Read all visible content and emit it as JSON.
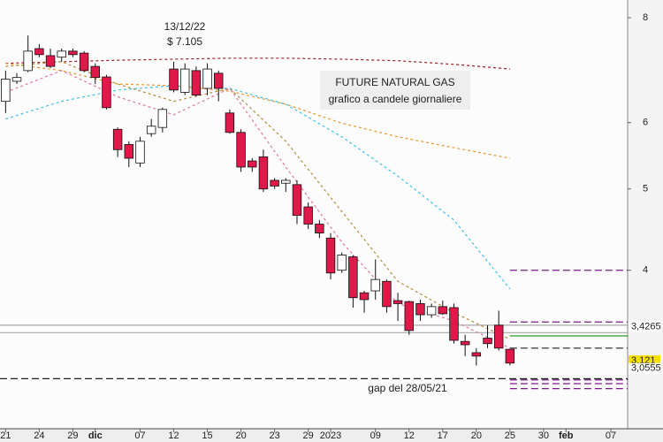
{
  "chart_data": {
    "type": "candlestick",
    "title": "FUTURE NATURAL GAS",
    "subtitle": "grafico a candele giornaliere",
    "annotations": [
      {
        "text": "13/12/22",
        "value_text": "$ 7.105"
      },
      {
        "text": "gap del 28/05/21"
      }
    ],
    "log_scale": true,
    "ylim": [
      2.57,
      8.4
    ],
    "yticks": [
      4,
      5,
      6,
      8
    ],
    "up_color": "#ffffff",
    "down_color": "#e0194b",
    "categories": [
      "21",
      null,
      null,
      "24",
      null,
      null,
      "29",
      null,
      "dic",
      null,
      null,
      null,
      "07",
      null,
      null,
      "12",
      null,
      null,
      "15",
      null,
      null,
      "20",
      null,
      null,
      "23",
      null,
      null,
      "29",
      null,
      "2023",
      null,
      null,
      null,
      "09",
      null,
      null,
      "12",
      null,
      null,
      "17",
      null,
      null,
      "20",
      null,
      null,
      "25",
      null,
      null,
      "30",
      null,
      "feb",
      null,
      null,
      null,
      "07",
      null
    ],
    "open": [
      6.36,
      6.72,
      6.92,
      7.35,
      7.21,
      7.18,
      7.3,
      7.26,
      7.0,
      6.8,
      5.89,
      5.65,
      5.37,
      5.82,
      5.92,
      6.95,
      6.52,
      6.92,
      6.59,
      6.87,
      6.16,
      5.84,
      5.4,
      5.46,
      5.12,
      5.08,
      5.06,
      4.76,
      4.54,
      4.37,
      4.0,
      4.15,
      3.76,
      3.78,
      3.88,
      3.68,
      3.67,
      3.65,
      3.54,
      3.62,
      3.61,
      3.29,
      3.19,
      3.32,
      3.44,
      3.22,
      null,
      null,
      null,
      null,
      null,
      null,
      null,
      null,
      null,
      null
    ],
    "high": [
      6.92,
      6.87,
      7.62,
      7.44,
      7.35,
      7.35,
      7.35,
      7.3,
      7.06,
      6.84,
      5.92,
      5.7,
      5.77,
      6.06,
      6.25,
      7.09,
      7.06,
      7.0,
      7.06,
      6.92,
      6.22,
      5.89,
      5.44,
      5.57,
      5.15,
      5.15,
      5.12,
      4.82,
      4.59,
      4.43,
      4.2,
      4.17,
      3.78,
      4.12,
      3.9,
      3.76,
      3.68,
      3.69,
      3.65,
      3.68,
      3.65,
      3.35,
      3.23,
      3.44,
      3.58,
      3.22,
      null,
      null,
      null,
      null,
      null,
      null,
      null,
      null,
      null,
      null
    ],
    "low": [
      6.16,
      6.67,
      6.89,
      7.18,
      6.97,
      7.09,
      7.18,
      6.89,
      6.67,
      6.22,
      5.46,
      5.31,
      5.31,
      5.77,
      5.84,
      6.52,
      6.47,
      6.44,
      6.47,
      6.36,
      5.82,
      5.24,
      5.24,
      4.96,
      5.0,
      4.96,
      4.54,
      4.48,
      4.37,
      3.9,
      3.97,
      3.61,
      3.56,
      3.69,
      3.56,
      3.48,
      3.35,
      3.48,
      3.51,
      3.54,
      3.27,
      3.16,
      3.08,
      3.23,
      3.21,
      3.08,
      null,
      null,
      null,
      null,
      null,
      null,
      null,
      null,
      null,
      null
    ],
    "close": [
      6.76,
      6.79,
      7.3,
      7.23,
      7.0,
      7.3,
      7.23,
      6.92,
      6.79,
      6.25,
      5.57,
      5.44,
      5.7,
      5.94,
      6.22,
      6.56,
      6.95,
      6.47,
      6.95,
      6.59,
      5.84,
      5.31,
      5.31,
      5.0,
      5.04,
      5.12,
      4.65,
      4.54,
      4.43,
      3.97,
      4.17,
      3.71,
      3.69,
      3.9,
      3.62,
      3.65,
      3.39,
      3.54,
      3.62,
      3.55,
      3.3,
      3.26,
      3.16,
      3.27,
      3.23,
      3.1,
      null,
      null,
      null,
      null,
      null,
      null,
      null,
      null,
      null,
      null
    ],
    "overlays": [
      {
        "color": "#a0202a",
        "x": [
          0,
          5,
          10,
          15,
          20,
          25,
          30,
          35,
          40,
          45
        ],
        "values": [
          7.06,
          7.09,
          7.12,
          7.14,
          7.16,
          7.16,
          7.14,
          7.11,
          7.04,
          6.95
        ]
      },
      {
        "color": "#e8962a",
        "x": [
          0,
          5,
          10,
          15,
          20,
          25,
          30,
          35,
          40,
          45
        ],
        "values": [
          7.06,
          6.92,
          6.67,
          6.64,
          6.54,
          6.31,
          5.99,
          5.77,
          5.6,
          5.44
        ]
      },
      {
        "color": "#3fc0e8",
        "x": [
          0,
          5,
          10,
          15,
          20,
          25,
          30,
          35,
          40,
          45
        ],
        "values": [
          6.06,
          6.36,
          6.56,
          6.64,
          6.59,
          6.31,
          5.77,
          5.18,
          4.59,
          3.8
        ]
      },
      {
        "color": "#b09040",
        "x": [
          0,
          5,
          10,
          15,
          20,
          25,
          30,
          35,
          40,
          45
        ],
        "values": [
          7.0,
          7.09,
          6.67,
          6.36,
          6.59,
          5.7,
          4.7,
          3.88,
          3.56,
          3.31
        ]
      },
      {
        "color": "#e07aa0",
        "x": [
          0,
          5,
          10,
          15,
          20,
          25,
          30,
          35,
          40,
          45
        ],
        "values": [
          6.52,
          6.92,
          6.44,
          6.13,
          6.59,
          5.31,
          4.32,
          3.65,
          3.48,
          3.23
        ]
      }
    ],
    "levels": [
      {
        "value": 3.44,
        "color": "#aaaaaa",
        "dash": false,
        "x_start": 0
      },
      {
        "value": 3.37,
        "color": "#aaaaaa",
        "dash": false,
        "x_start": 0
      },
      {
        "value": 2.97,
        "color": "#222222",
        "dash": true,
        "x_start": 0
      },
      {
        "value": 4.0,
        "color": "#7a1a8a",
        "dash": true,
        "x_start": 45
      },
      {
        "value": 3.47,
        "color": "#7a1a8a",
        "dash": true,
        "x_start": 45
      },
      {
        "value": 3.34,
        "color": "#2a9a2a",
        "dash": false,
        "x_start": 45
      },
      {
        "value": 3.23,
        "color": "#222222",
        "dash": true,
        "x_start": 45
      },
      {
        "value": 2.96,
        "color": "#7a1a8a",
        "dash": true,
        "x_start": 45
      },
      {
        "value": 2.93,
        "color": "#7a1a8a",
        "dash": true,
        "x_start": 45
      },
      {
        "value": 2.89,
        "color": "#7a1a8a",
        "dash": true,
        "x_start": 45
      }
    ],
    "price_labels": [
      {
        "value": 3.4265,
        "label": "3,4265",
        "color": "#e8a030",
        "background": "#ffffff"
      },
      {
        "value": 3.121,
        "label": "3,121",
        "color": "#000000",
        "background": "#f4e000"
      },
      {
        "value": 3.0555,
        "label": "3,0555",
        "color": "#e8a030",
        "background": "#ffffff"
      }
    ]
  }
}
